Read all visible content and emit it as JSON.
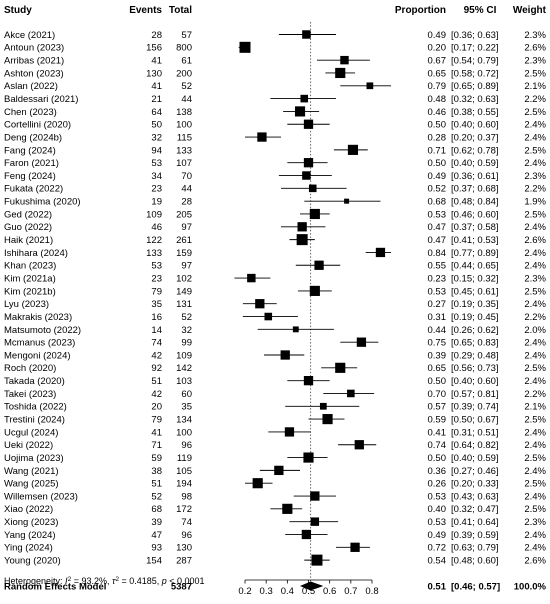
{
  "headers": {
    "study": "Study",
    "events": "Events",
    "total": "Total",
    "proportion": "Proportion",
    "ci": "95% CI",
    "weight": "Weight"
  },
  "chart_data": {
    "type": "forest",
    "studies": [
      {
        "study": "Akce (2021)",
        "events": 28,
        "total": 57,
        "proportion": 0.49,
        "ci": "[0.36; 0.63]",
        "lower": 0.36,
        "upper": 0.63,
        "weight": "2.3%"
      },
      {
        "study": "Antoun (2023)",
        "events": 156,
        "total": 800,
        "proportion": 0.2,
        "ci": "[0.17; 0.22]",
        "lower": 0.17,
        "upper": 0.22,
        "weight": "2.6%"
      },
      {
        "study": "Arribas (2021)",
        "events": 41,
        "total": 61,
        "proportion": 0.67,
        "ci": "[0.54; 0.79]",
        "lower": 0.54,
        "upper": 0.79,
        "weight": "2.3%"
      },
      {
        "study": "Ashton (2023)",
        "events": 130,
        "total": 200,
        "proportion": 0.65,
        "ci": "[0.58; 0.72]",
        "lower": 0.58,
        "upper": 0.72,
        "weight": "2.5%"
      },
      {
        "study": "Aslan (2022)",
        "events": 41,
        "total": 52,
        "proportion": 0.79,
        "ci": "[0.65; 0.89]",
        "lower": 0.65,
        "upper": 0.89,
        "weight": "2.1%"
      },
      {
        "study": "Baldessari (2021)",
        "events": 21,
        "total": 44,
        "proportion": 0.48,
        "ci": "[0.32; 0.63]",
        "lower": 0.32,
        "upper": 0.63,
        "weight": "2.2%"
      },
      {
        "study": "Chen (2023)",
        "events": 64,
        "total": 138,
        "proportion": 0.46,
        "ci": "[0.38; 0.55]",
        "lower": 0.38,
        "upper": 0.55,
        "weight": "2.5%"
      },
      {
        "study": "Cortellini (2020)",
        "events": 50,
        "total": 100,
        "proportion": 0.5,
        "ci": "[0.40; 0.60]",
        "lower": 0.4,
        "upper": 0.6,
        "weight": "2.4%"
      },
      {
        "study": "Deng (2024b)",
        "events": 32,
        "total": 115,
        "proportion": 0.28,
        "ci": "[0.20; 0.37]",
        "lower": 0.2,
        "upper": 0.37,
        "weight": "2.4%"
      },
      {
        "study": "Fang (2024)",
        "events": 94,
        "total": 133,
        "proportion": 0.71,
        "ci": "[0.62; 0.78]",
        "lower": 0.62,
        "upper": 0.78,
        "weight": "2.5%"
      },
      {
        "study": "Faron (2021)",
        "events": 53,
        "total": 107,
        "proportion": 0.5,
        "ci": "[0.40; 0.59]",
        "lower": 0.4,
        "upper": 0.59,
        "weight": "2.4%"
      },
      {
        "study": "Feng (2024)",
        "events": 34,
        "total": 70,
        "proportion": 0.49,
        "ci": "[0.36; 0.61]",
        "lower": 0.36,
        "upper": 0.61,
        "weight": "2.3%"
      },
      {
        "study": "Fukata (2022)",
        "events": 23,
        "total": 44,
        "proportion": 0.52,
        "ci": "[0.37; 0.68]",
        "lower": 0.37,
        "upper": 0.68,
        "weight": "2.2%"
      },
      {
        "study": "Fukushima (2020)",
        "events": 19,
        "total": 28,
        "proportion": 0.68,
        "ci": "[0.48; 0.84]",
        "lower": 0.48,
        "upper": 0.84,
        "weight": "1.9%"
      },
      {
        "study": "Ged (2022)",
        "events": 109,
        "total": 205,
        "proportion": 0.53,
        "ci": "[0.46; 0.60]",
        "lower": 0.46,
        "upper": 0.6,
        "weight": "2.5%"
      },
      {
        "study": "Guo (2022)",
        "events": 46,
        "total": 97,
        "proportion": 0.47,
        "ci": "[0.37; 0.58]",
        "lower": 0.37,
        "upper": 0.58,
        "weight": "2.4%"
      },
      {
        "study": "Haik (2021)",
        "events": 122,
        "total": 261,
        "proportion": 0.47,
        "ci": "[0.41; 0.53]",
        "lower": 0.41,
        "upper": 0.53,
        "weight": "2.6%"
      },
      {
        "study": "Ishihara (2024)",
        "events": 133,
        "total": 159,
        "proportion": 0.84,
        "ci": "[0.77; 0.89]",
        "lower": 0.77,
        "upper": 0.89,
        "weight": "2.4%"
      },
      {
        "study": "Khan (2023)",
        "events": 53,
        "total": 97,
        "proportion": 0.55,
        "ci": "[0.44; 0.65]",
        "lower": 0.44,
        "upper": 0.65,
        "weight": "2.4%"
      },
      {
        "study": "Kim (2021a)",
        "events": 23,
        "total": 102,
        "proportion": 0.23,
        "ci": "[0.15; 0.32]",
        "lower": 0.15,
        "upper": 0.32,
        "weight": "2.3%"
      },
      {
        "study": "Kim (2021b)",
        "events": 79,
        "total": 149,
        "proportion": 0.53,
        "ci": "[0.45; 0.61]",
        "lower": 0.45,
        "upper": 0.61,
        "weight": "2.5%"
      },
      {
        "study": "Lyu (2023)",
        "events": 35,
        "total": 131,
        "proportion": 0.27,
        "ci": "[0.19; 0.35]",
        "lower": 0.19,
        "upper": 0.35,
        "weight": "2.4%"
      },
      {
        "study": "Makrakis (2023)",
        "events": 16,
        "total": 52,
        "proportion": 0.31,
        "ci": "[0.19; 0.45]",
        "lower": 0.19,
        "upper": 0.45,
        "weight": "2.2%"
      },
      {
        "study": "Matsumoto (2022)",
        "events": 14,
        "total": 32,
        "proportion": 0.44,
        "ci": "[0.26; 0.62]",
        "lower": 0.26,
        "upper": 0.62,
        "weight": "2.0%"
      },
      {
        "study": "Mcmanus (2023)",
        "events": 74,
        "total": 99,
        "proportion": 0.75,
        "ci": "[0.65; 0.83]",
        "lower": 0.65,
        "upper": 0.83,
        "weight": "2.4%"
      },
      {
        "study": "Mengoni (2024)",
        "events": 42,
        "total": 109,
        "proportion": 0.39,
        "ci": "[0.29; 0.48]",
        "lower": 0.29,
        "upper": 0.48,
        "weight": "2.4%"
      },
      {
        "study": "Roch (2020)",
        "events": 92,
        "total": 142,
        "proportion": 0.65,
        "ci": "[0.56; 0.73]",
        "lower": 0.56,
        "upper": 0.73,
        "weight": "2.5%"
      },
      {
        "study": "Takada (2020)",
        "events": 51,
        "total": 103,
        "proportion": 0.5,
        "ci": "[0.40; 0.60]",
        "lower": 0.4,
        "upper": 0.6,
        "weight": "2.4%"
      },
      {
        "study": "Takei (2023)",
        "events": 42,
        "total": 60,
        "proportion": 0.7,
        "ci": "[0.57; 0.81]",
        "lower": 0.57,
        "upper": 0.81,
        "weight": "2.2%"
      },
      {
        "study": "Toshida (2022)",
        "events": 20,
        "total": 35,
        "proportion": 0.57,
        "ci": "[0.39; 0.74]",
        "lower": 0.39,
        "upper": 0.74,
        "weight": "2.1%"
      },
      {
        "study": "Trestini (2024)",
        "events": 79,
        "total": 134,
        "proportion": 0.59,
        "ci": "[0.50; 0.67]",
        "lower": 0.5,
        "upper": 0.67,
        "weight": "2.5%"
      },
      {
        "study": "Ucgul (2024)",
        "events": 41,
        "total": 100,
        "proportion": 0.41,
        "ci": "[0.31; 0.51]",
        "lower": 0.31,
        "upper": 0.51,
        "weight": "2.4%"
      },
      {
        "study": "Ueki (2022)",
        "events": 71,
        "total": 96,
        "proportion": 0.74,
        "ci": "[0.64; 0.82]",
        "lower": 0.64,
        "upper": 0.82,
        "weight": "2.4%"
      },
      {
        "study": "Uojima (2023)",
        "events": 59,
        "total": 119,
        "proportion": 0.5,
        "ci": "[0.40; 0.59]",
        "lower": 0.4,
        "upper": 0.59,
        "weight": "2.5%"
      },
      {
        "study": "Wang (2021)",
        "events": 38,
        "total": 105,
        "proportion": 0.36,
        "ci": "[0.27; 0.46]",
        "lower": 0.27,
        "upper": 0.46,
        "weight": "2.4%"
      },
      {
        "study": "Wang (2025)",
        "events": 51,
        "total": 194,
        "proportion": 0.26,
        "ci": "[0.20; 0.33]",
        "lower": 0.2,
        "upper": 0.33,
        "weight": "2.5%"
      },
      {
        "study": "Willemsen (2023)",
        "events": 52,
        "total": 98,
        "proportion": 0.53,
        "ci": "[0.43; 0.63]",
        "lower": 0.43,
        "upper": 0.63,
        "weight": "2.4%"
      },
      {
        "study": "Xiao (2022)",
        "events": 68,
        "total": 172,
        "proportion": 0.4,
        "ci": "[0.32; 0.47]",
        "lower": 0.32,
        "upper": 0.47,
        "weight": "2.5%"
      },
      {
        "study": "Xiong (2023)",
        "events": 39,
        "total": 74,
        "proportion": 0.53,
        "ci": "[0.41; 0.64]",
        "lower": 0.41,
        "upper": 0.64,
        "weight": "2.3%"
      },
      {
        "study": "Yang (2024)",
        "events": 47,
        "total": 96,
        "proportion": 0.49,
        "ci": "[0.39; 0.59]",
        "lower": 0.39,
        "upper": 0.59,
        "weight": "2.4%"
      },
      {
        "study": "Ying (2024)",
        "events": 93,
        "total": 130,
        "proportion": 0.72,
        "ci": "[0.63; 0.79]",
        "lower": 0.63,
        "upper": 0.79,
        "weight": "2.4%"
      },
      {
        "study": "Young (2020)",
        "events": 154,
        "total": 287,
        "proportion": 0.54,
        "ci": "[0.48; 0.60]",
        "lower": 0.48,
        "upper": 0.6,
        "weight": "2.6%"
      }
    ],
    "pooled": {
      "label": "Random Effects Model",
      "total": 5387,
      "proportion": 0.51,
      "ci": "[0.46; 0.57]",
      "lower": 0.46,
      "upper": 0.57,
      "weight": "100.0%"
    },
    "heterogeneity": {
      "prefix": "Heterogeneity: ",
      "i2_symbol": "I",
      "i2_value": " = 93.2%, ",
      "tau2_symbol": "τ",
      "tau2_value": " = 0.4185, ",
      "p_symbol": "p",
      "p_value": " < 0.0001"
    },
    "x_ticks": [
      0.2,
      0.3,
      0.4,
      0.5,
      0.6,
      0.7,
      0.8
    ],
    "xlim": [
      0.2,
      0.8
    ],
    "reference_line": 0.51,
    "colors": {
      "marker": "#000000",
      "reference_line": "#555555",
      "text": "#000000"
    }
  }
}
